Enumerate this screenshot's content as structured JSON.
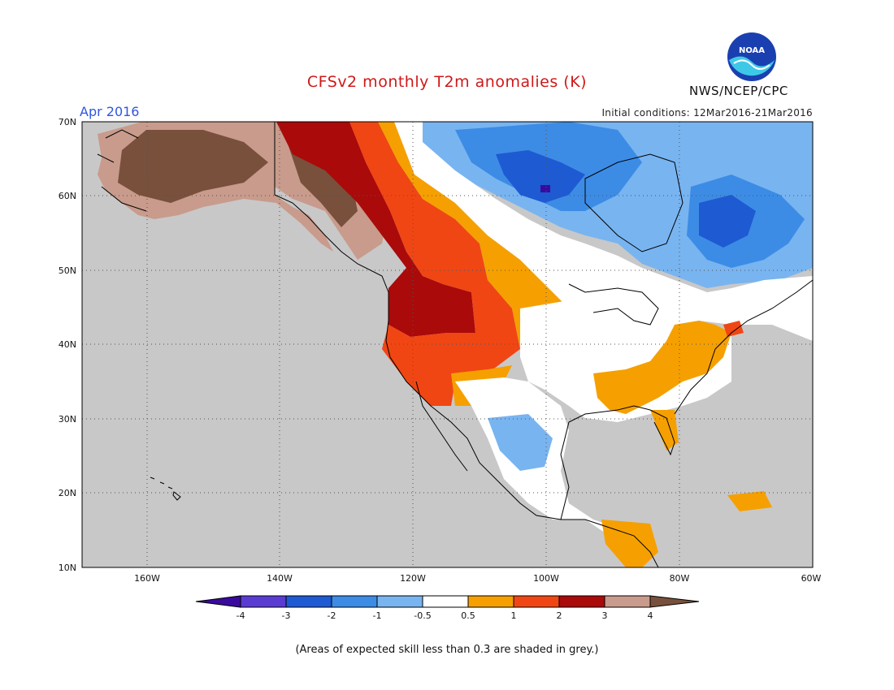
{
  "title": "CFSv2 monthly T2m anomalies (K)",
  "subtitle": "Apr 2016",
  "initial_conditions": "Initial conditions: 12Mar2016-21Mar2016",
  "agency": "NWS/NCEP/CPC",
  "logo_text": "NOAA",
  "footnote": "(Areas of expected skill less than 0.3 are shaded in grey.)",
  "map": {
    "lon_range": [
      -170,
      -60
    ],
    "lat_range": [
      10,
      70
    ],
    "lat_labels": [
      "70N",
      "60N",
      "50N",
      "40N",
      "30N",
      "20N",
      "10N"
    ],
    "lon_labels": [
      "160W",
      "140W",
      "120W",
      "100W",
      "80W",
      "60W"
    ],
    "colors": {
      "low_skill_grey": "#c8c8c8",
      "land_outline": "#000000"
    }
  },
  "colorbar": {
    "labels": [
      "-4",
      "-3",
      "-2",
      "-1",
      "-0.5",
      "0.5",
      "1",
      "2",
      "3",
      "4"
    ],
    "colors": [
      "#3a0a9e",
      "#5a3cd2",
      "#1e5ad2",
      "#3c8ce6",
      "#78b4f0",
      "#ffffff",
      "#f5a000",
      "#f04614",
      "#aa0a0a",
      "#c89b8c",
      "#78503c"
    ]
  }
}
